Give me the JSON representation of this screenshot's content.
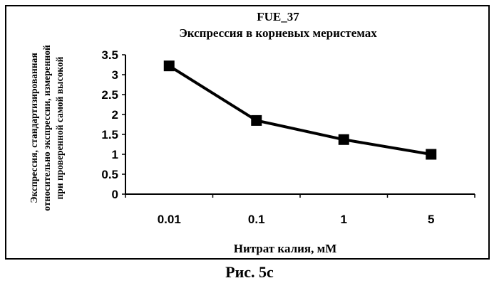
{
  "chart_data": {
    "type": "line",
    "title": "FUE_37",
    "subtitle": "Экспрессия в корневых меристемах",
    "xlabel": "Нитрат калия, мМ",
    "ylabel_lines": [
      "Экспрессия, стандартизированная",
      "относительно экспрессии, измеренной",
      "при проверенной самой высокой"
    ],
    "categories": [
      "0.01",
      "0.1",
      "1",
      "5"
    ],
    "series": [
      {
        "values": [
          3.22,
          1.85,
          1.37,
          1.0
        ]
      }
    ],
    "ylim": [
      0,
      3.5
    ],
    "yticks": [
      "0",
      "0.5",
      "1",
      "1.5",
      "2",
      "2.5",
      "3",
      "3.5"
    ],
    "grid": false,
    "legend": "none",
    "marker": "square",
    "line_color": "#000000"
  },
  "caption": "Рис. 5с"
}
